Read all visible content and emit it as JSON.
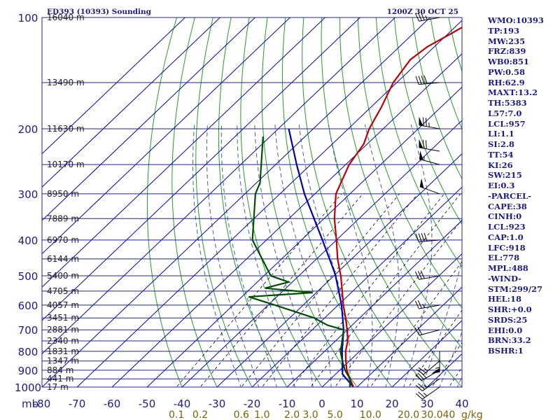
{
  "chart_data": {
    "type": "skew-t",
    "header_left": "ED393 (10393) Sounding",
    "header_right": "1200Z 30 OCT 25",
    "pressure_unit_label": "mb",
    "mixing_ratio_unit": "g/kg",
    "pressure_ticks": [
      100,
      200,
      300,
      400,
      500,
      600,
      700,
      800,
      900,
      1000
    ],
    "temperature_ticks": [
      -80,
      -70,
      -60,
      -50,
      -40,
      -30,
      -20,
      -10,
      0,
      10,
      20,
      30,
      40
    ],
    "mixing_ratio_labels": [
      "0.1",
      "0.2",
      "0.6",
      "1.0",
      "2.0",
      "3.0",
      "5.0",
      "10.0",
      "20.0",
      "30.0",
      "40"
    ],
    "height_labels": [
      {
        "p": 100,
        "label": "16040 m"
      },
      {
        "p": 150,
        "label": "13490 m"
      },
      {
        "p": 200,
        "label": "11630 m"
      },
      {
        "p": 250,
        "label": "10170 m"
      },
      {
        "p": 300,
        "label": "8950 m"
      },
      {
        "p": 350,
        "label": "7889 m"
      },
      {
        "p": 400,
        "label": "6970 m"
      },
      {
        "p": 450,
        "label": "6144 m"
      },
      {
        "p": 500,
        "label": "5400 m"
      },
      {
        "p": 550,
        "label": "4705 m"
      },
      {
        "p": 600,
        "label": "4057 m"
      },
      {
        "p": 650,
        "label": "3451 m"
      },
      {
        "p": 700,
        "label": "2881 m"
      },
      {
        "p": 750,
        "label": "2340 m"
      },
      {
        "p": 800,
        "label": "1831 m"
      },
      {
        "p": 850,
        "label": "1347 m"
      },
      {
        "p": 900,
        "label": "884 m"
      },
      {
        "p": 950,
        "label": "441 m"
      },
      {
        "p": 1000,
        "label": "17 m"
      }
    ],
    "temperature_profile": [
      {
        "p": 1000,
        "t": 9
      },
      {
        "p": 950,
        "t": 5.5
      },
      {
        "p": 900,
        "t": 2
      },
      {
        "p": 850,
        "t": -1
      },
      {
        "p": 800,
        "t": -4
      },
      {
        "p": 750,
        "t": -6.5
      },
      {
        "p": 700,
        "t": -10
      },
      {
        "p": 650,
        "t": -14
      },
      {
        "p": 600,
        "t": -18.5
      },
      {
        "p": 550,
        "t": -23
      },
      {
        "p": 500,
        "t": -28
      },
      {
        "p": 450,
        "t": -34
      },
      {
        "p": 400,
        "t": -40
      },
      {
        "p": 350,
        "t": -47
      },
      {
        "p": 300,
        "t": -54
      },
      {
        "p": 250,
        "t": -59
      },
      {
        "p": 220,
        "t": -61
      },
      {
        "p": 200,
        "t": -64
      },
      {
        "p": 175,
        "t": -67
      },
      {
        "p": 150,
        "t": -71
      },
      {
        "p": 130,
        "t": -73
      },
      {
        "p": 120,
        "t": -72
      },
      {
        "p": 110,
        "t": -69
      },
      {
        "p": 100,
        "t": -66
      }
    ],
    "dewpoint_profile": [
      {
        "p": 1000,
        "t": 8
      },
      {
        "p": 950,
        "t": 5.5
      },
      {
        "p": 900,
        "t": 1.5
      },
      {
        "p": 850,
        "t": -2
      },
      {
        "p": 800,
        "t": -5.5
      },
      {
        "p": 770,
        "t": -7
      },
      {
        "p": 700,
        "t": -11
      },
      {
        "p": 680,
        "t": -17
      },
      {
        "p": 650,
        "t": -23
      },
      {
        "p": 600,
        "t": -38
      },
      {
        "p": 570,
        "t": -48
      },
      {
        "p": 555,
        "t": -31
      },
      {
        "p": 540,
        "t": -46
      },
      {
        "p": 520,
        "t": -41
      },
      {
        "p": 500,
        "t": -48
      },
      {
        "p": 400,
        "t": -64
      },
      {
        "p": 300,
        "t": -77
      },
      {
        "p": 280,
        "t": -79
      },
      {
        "p": 210,
        "t": -92
      }
    ],
    "parcel_profile": [
      {
        "p": 1000,
        "t": 9
      },
      {
        "p": 923,
        "t": 2
      },
      {
        "p": 850,
        "t": -2
      },
      {
        "p": 800,
        "t": -5
      },
      {
        "p": 700,
        "t": -11
      },
      {
        "p": 600,
        "t": -19
      },
      {
        "p": 500,
        "t": -29.5
      },
      {
        "p": 488,
        "t": -31
      },
      {
        "p": 400,
        "t": -44
      },
      {
        "p": 300,
        "t": -63
      },
      {
        "p": 250,
        "t": -74
      },
      {
        "p": 200,
        "t": -87
      }
    ],
    "winds": [
      {
        "p": 100,
        "dir": 260,
        "spd": 35
      },
      {
        "p": 150,
        "dir": 265,
        "spd": 40
      },
      {
        "p": 200,
        "dir": 280,
        "spd": 75
      },
      {
        "p": 230,
        "dir": 280,
        "spd": 70
      },
      {
        "p": 250,
        "dir": 285,
        "spd": 55
      },
      {
        "p": 300,
        "dir": 290,
        "spd": 50
      },
      {
        "p": 400,
        "dir": 265,
        "spd": 40
      },
      {
        "p": 500,
        "dir": 260,
        "spd": 30
      },
      {
        "p": 600,
        "dir": 260,
        "spd": 25
      },
      {
        "p": 700,
        "dir": 255,
        "spd": 20
      },
      {
        "p": 800,
        "dir": 180,
        "spd": 55
      },
      {
        "p": 850,
        "dir": 230,
        "spd": 25
      },
      {
        "p": 900,
        "dir": 240,
        "spd": 30
      },
      {
        "p": 950,
        "dir": 235,
        "spd": 25
      },
      {
        "p": 1000,
        "dir": 235,
        "spd": 25
      }
    ],
    "grid": true
  },
  "indices": [
    "WMO:10393",
    "TP:193",
    "MW:235",
    "FRZ:839",
    "WB0:851",
    "PW:0.58",
    "RH:62.9",
    "MAXT:13.2",
    "TH:5383",
    "L57:7.0",
    "LCL:957",
    "LI:1.1",
    "SI:2.8",
    "TT:54",
    "KI:26",
    "SW:215",
    "EI:0.3",
    "-PARCEL-",
    "CAPE:38",
    "CINH:0",
    "LCL:923",
    "CAP:1.0",
    "LFC:918",
    "EL:778",
    "MPL:488",
    "-WIND-",
    "STM:299/27",
    "HEL:18",
    "SHR:+0.0",
    "SRDS:25",
    "EHI:0.0",
    "BRN:33.2",
    "BSHR:1"
  ],
  "colors": {
    "isobar": "#2020a0",
    "isotherm": "#0000c0",
    "dry_adiabat": "#20a020",
    "moist_adiabat": "#4060a0",
    "mixing_ratio": "#000000",
    "temperature": "#c00000",
    "dewpoint": "#005000",
    "parcel": "#0000b0",
    "axis_text": "#1a1a8c",
    "mixing_label": "#806000"
  }
}
